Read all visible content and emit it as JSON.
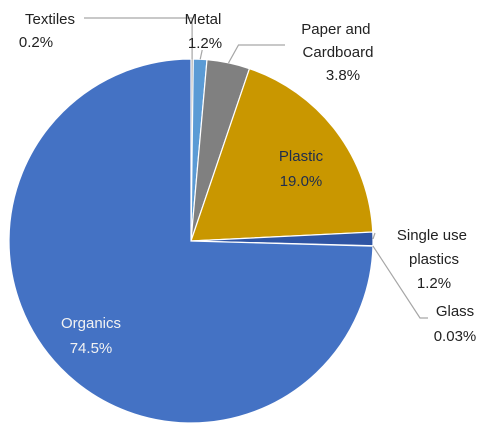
{
  "chart_data": {
    "type": "pie",
    "title": "",
    "slices": [
      {
        "label": "Textiles",
        "value": 0.2,
        "value_label": "0.2%",
        "color": "#a5a5a5"
      },
      {
        "label": "Metal",
        "value": 1.2,
        "value_label": "1.2%",
        "color": "#5b9bd5"
      },
      {
        "label": "Paper and Cardboard",
        "value": 3.8,
        "value_label": "3.8%",
        "color": "#808080"
      },
      {
        "label": "Plastic",
        "value": 19.0,
        "value_label": "19.0%",
        "color": "#c99700"
      },
      {
        "label": "Single use plastics",
        "value": 1.2,
        "value_label": "1.2%",
        "color": "#2f55a4"
      },
      {
        "label": "Glass",
        "value": 0.03,
        "value_label": "0.03%",
        "color": "#70ad47"
      },
      {
        "label": "Organics",
        "value": 74.5,
        "value_label": "74.5%",
        "color": "#4472c4"
      }
    ],
    "start": "12 o'clock",
    "direction": "clockwise",
    "legend": "none"
  }
}
